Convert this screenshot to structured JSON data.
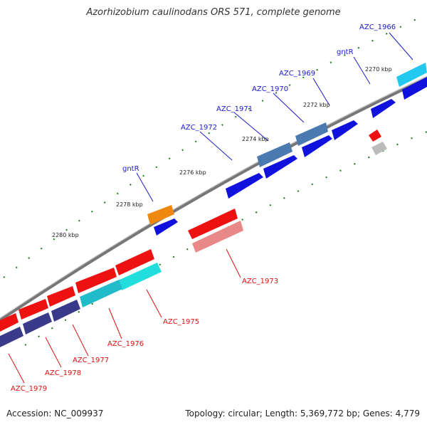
{
  "title": "Azorhizobium caulinodans ORS 571, complete genome",
  "footer": {
    "accession": "Accession: NC_009937",
    "summary": "Topology: circular; Length: 5,369,772 bp; Genes: 4,779"
  },
  "colors": {
    "plus_label": "#1a1acc",
    "minus_label": "#dd1111",
    "backbone": "#777777",
    "tick": "#1a7a1a"
  },
  "scale_labels": [
    "2270 kbp",
    "2272 kbp",
    "2274 kbp",
    "2276 kbp",
    "2278 kbp",
    "2280 kbp"
  ],
  "gene_labels": [
    {
      "text": "AZC_1966",
      "strand": "plus"
    },
    {
      "text": "gntR",
      "strand": "plus"
    },
    {
      "text": "AZC_1969",
      "strand": "plus"
    },
    {
      "text": "AZC_1970",
      "strand": "plus"
    },
    {
      "text": "AZC_1971",
      "strand": "plus"
    },
    {
      "text": "AZC_1972",
      "strand": "plus"
    },
    {
      "text": "gntR",
      "strand": "plus"
    },
    {
      "text": "AZC_1973",
      "strand": "minus"
    },
    {
      "text": "AZC_1975",
      "strand": "minus"
    },
    {
      "text": "AZC_1976",
      "strand": "minus"
    },
    {
      "text": "AZC_1977",
      "strand": "minus"
    },
    {
      "text": "AZC_1978",
      "strand": "minus"
    },
    {
      "text": "AZC_1979",
      "strand": "minus"
    }
  ]
}
